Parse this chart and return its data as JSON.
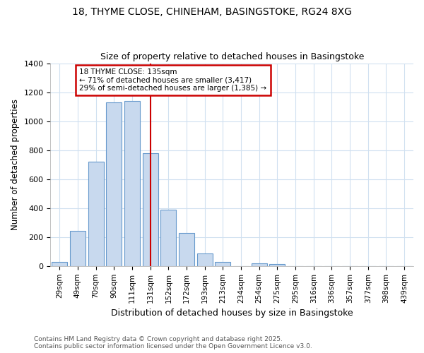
{
  "title": "18, THYME CLOSE, CHINEHAM, BASINGSTOKE, RG24 8XG",
  "subtitle": "Size of property relative to detached houses in Basingstoke",
  "xlabel": "Distribution of detached houses by size in Basingstoke",
  "ylabel": "Number of detached properties",
  "categories": [
    "29sqm",
    "49sqm",
    "70sqm",
    "90sqm",
    "111sqm",
    "131sqm",
    "152sqm",
    "172sqm",
    "193sqm",
    "213sqm",
    "234sqm",
    "254sqm",
    "275sqm",
    "295sqm",
    "316sqm",
    "336sqm",
    "357sqm",
    "377sqm",
    "398sqm",
    "439sqm"
  ],
  "values": [
    30,
    245,
    720,
    1130,
    1140,
    780,
    390,
    230,
    85,
    30,
    0,
    20,
    15,
    0,
    0,
    0,
    0,
    0,
    0,
    0
  ],
  "bar_color": "#c8d9ee",
  "bar_edge_color": "#6699cc",
  "vline_color": "#cc0000",
  "vline_x": 5,
  "annotation_title": "18 THYME CLOSE: 135sqm",
  "annotation_line1": "← 71% of detached houses are smaller (3,417)",
  "annotation_line2": "29% of semi-detached houses are larger (1,385) →",
  "annotation_box_color": "#ffffff",
  "annotation_border_color": "#cc0000",
  "ylim": [
    0,
    1400
  ],
  "yticks": [
    0,
    200,
    400,
    600,
    800,
    1000,
    1200,
    1400
  ],
  "footer1": "Contains HM Land Registry data © Crown copyright and database right 2025.",
  "footer2": "Contains public sector information licensed under the Open Government Licence v3.0.",
  "bg_color": "#ffffff",
  "grid_color": "#d0e0f0",
  "title_fontsize": 10,
  "subtitle_fontsize": 9
}
